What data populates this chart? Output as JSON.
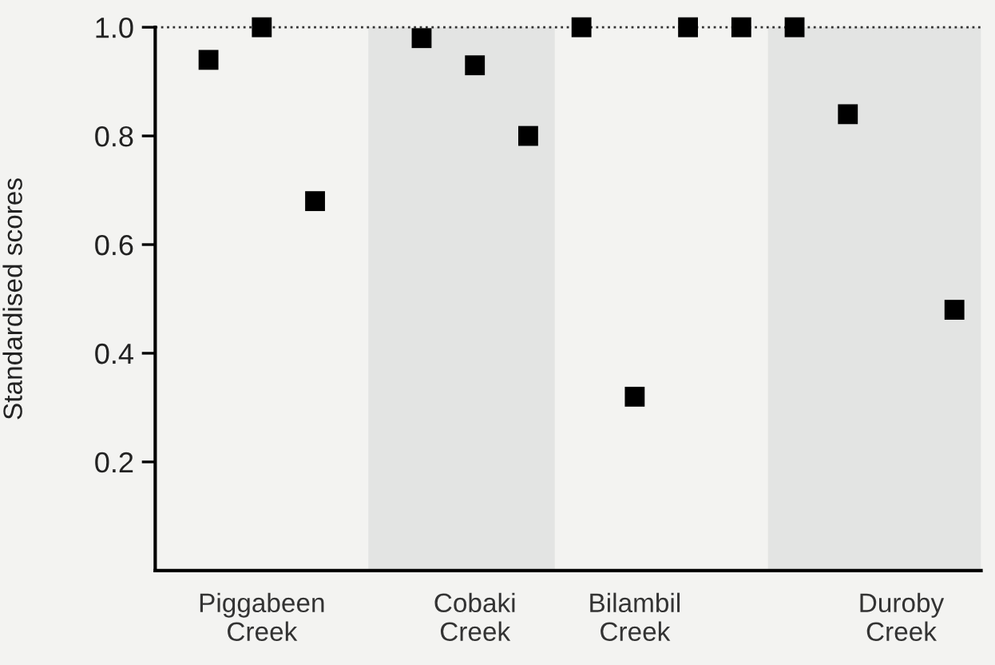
{
  "chart_data": {
    "type": "scatter",
    "ylabel": "Standardised scores",
    "categories": [
      null,
      null,
      "Piggabeen\nCreek",
      null,
      null,
      null,
      "Cobaki\nCreek",
      null,
      null,
      "Bilambil\nCreek",
      null,
      null,
      null,
      null,
      "Duroby\nCreek",
      null
    ],
    "series": [
      {
        "color": "#000000",
        "values": [
          null,
          0.94,
          1.0,
          0.68,
          null,
          0.98,
          0.93,
          0.8,
          1.0,
          0.32,
          1.0,
          1.0,
          1.0,
          0.84,
          null,
          0.48
        ]
      }
    ],
    "ylim": [
      0,
      1.0
    ],
    "yticks": [
      0.2,
      0.4,
      0.6,
      0.8,
      {
        "value": 1.0,
        "label": "1.0"
      }
    ],
    "ref_lines": [
      {
        "axis": "y",
        "value": 1.0,
        "color": "#333333",
        "line_style": "dotted"
      }
    ],
    "marker": "square",
    "grid": false,
    "legend": false
  }
}
